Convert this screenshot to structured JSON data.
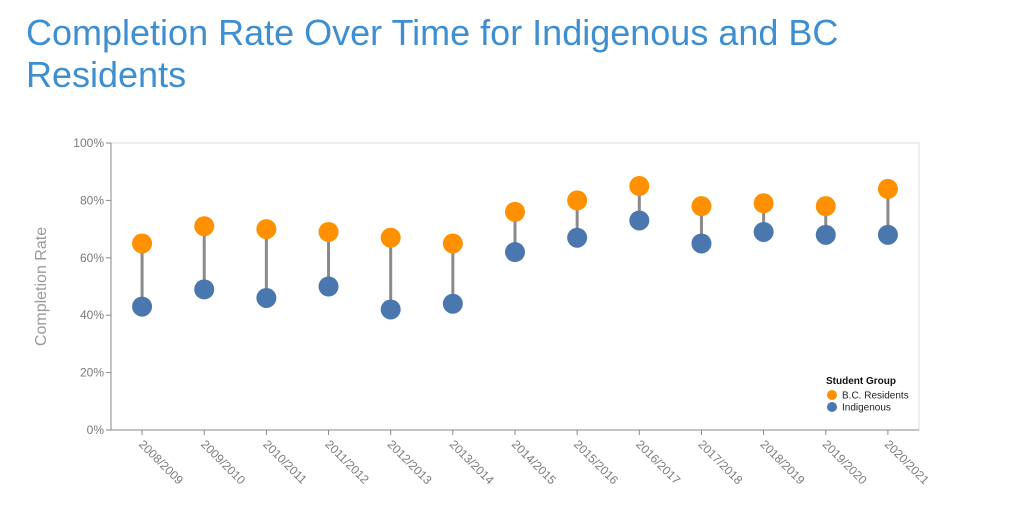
{
  "title": "Completion Rate Over Time for Indigenous and BC Residents",
  "colors": {
    "bc": "#ff9000",
    "indigenous": "#4a77ad",
    "connector": "#8a8a8a",
    "title": "#3d8fd1"
  },
  "chart_data": {
    "type": "dot-plot",
    "title": "Completion Rate Over Time for Indigenous and BC Residents",
    "xlabel": "",
    "ylabel": "Completion Rate",
    "ylim": [
      0,
      100
    ],
    "y_ticks": [
      "0%",
      "20%",
      "40%",
      "60%",
      "80%",
      "100%"
    ],
    "grid": false,
    "categories": [
      "2008/2009",
      "2009/2010",
      "2010/2011",
      "2011/2012",
      "2012/2013",
      "2013/2014",
      "2014/2015",
      "2015/2016",
      "2016/2017",
      "2017/2018",
      "2018/2019",
      "2019/2020",
      "2020/2021"
    ],
    "series": [
      {
        "name": "B.C. Residents",
        "color": "#ff9000",
        "values": [
          65,
          71,
          70,
          69,
          67,
          65,
          76,
          80,
          85,
          78,
          79,
          78,
          84
        ]
      },
      {
        "name": "Indigenous",
        "color": "#4a77ad",
        "values": [
          43,
          49,
          46,
          50,
          42,
          44,
          62,
          67,
          73,
          65,
          69,
          68,
          68
        ]
      }
    ],
    "legend": {
      "title": "Student Group",
      "position": "bottom-right"
    }
  }
}
